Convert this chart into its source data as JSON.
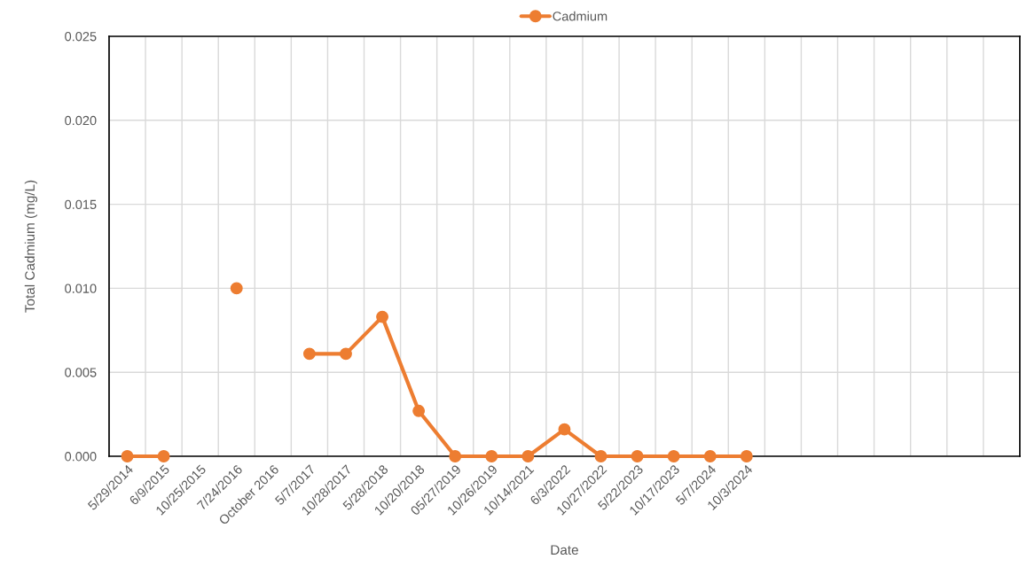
{
  "chart_data": {
    "type": "line",
    "xlabel": "Date",
    "ylabel": "Total Cadmium (mg/L)",
    "categories": [
      "5/29/2014",
      "6/9/2015",
      "10/25/2015",
      "7/24/2016",
      "October 2016",
      "5/7/2017",
      "10/28/2017",
      "5/28/2018",
      "10/20/2018",
      "05/27/2019",
      "10/26/2019",
      "10/14/2021",
      "6/3/2022",
      "10/27/2022",
      "5/22/2023",
      "10/17/2023",
      "5/7/2024",
      "10/3/2024",
      null,
      null,
      null,
      null,
      null,
      null,
      null
    ],
    "series": [
      {
        "name": "Cadmium",
        "color": "#ed7d31",
        "values": [
          0,
          0,
          null,
          0.01,
          null,
          0.0061,
          0.0061,
          0.0083,
          0.0027,
          0,
          0,
          0,
          0.0016,
          0,
          0,
          0,
          0,
          0,
          null,
          null,
          null,
          null,
          null,
          null,
          null
        ]
      }
    ],
    "ylim": [
      0,
      0.025
    ],
    "yticks": [
      {
        "value": 0,
        "label": "0.000"
      },
      {
        "value": 0.005,
        "label": "0.005"
      },
      {
        "value": 0.01,
        "label": "0.010"
      },
      {
        "value": 0.015,
        "label": "0.015"
      },
      {
        "value": 0.02,
        "label": "0.020"
      },
      {
        "value": 0.025,
        "label": "0.025"
      }
    ],
    "grid": true,
    "legend": "top",
    "marker": "circle",
    "line_style": "solid"
  }
}
